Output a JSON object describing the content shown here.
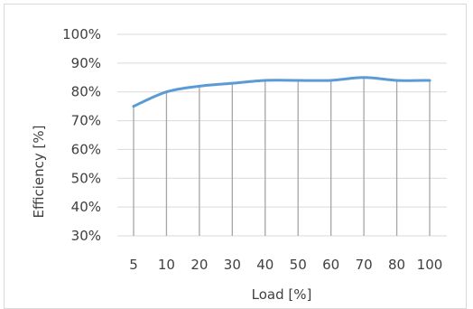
{
  "chart_data": {
    "type": "line",
    "title": "",
    "xlabel": "Load [%]",
    "ylabel": "Efficiency [%]",
    "categories": [
      "5",
      "10",
      "20",
      "30",
      "40",
      "50",
      "60",
      "70",
      "80",
      "100"
    ],
    "series": [
      {
        "values": [
          75,
          80,
          82,
          83,
          84,
          84,
          84,
          85,
          84,
          84
        ]
      }
    ],
    "ylim": [
      30,
      100
    ],
    "yticks": [
      "30%",
      "40%",
      "50%",
      "60%",
      "70%",
      "80%",
      "90%",
      "100%"
    ],
    "grid": "horizontal and vertical",
    "legend": "none",
    "colors": {
      "line": "#5b9bd5",
      "grid": "#d9d9d9",
      "vgrid": "#a6a6a6"
    }
  }
}
